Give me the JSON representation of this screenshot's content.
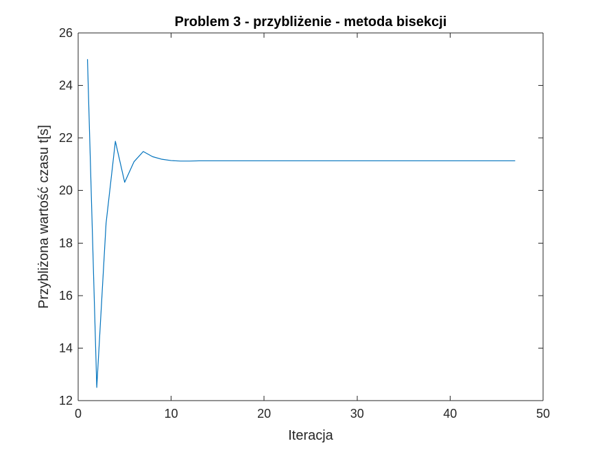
{
  "chart_data": {
    "type": "line",
    "title": "Problem 3 - przybliżenie - metoda bisekcji",
    "xlabel": "Iteracja",
    "ylabel": "Przybliżona wartość czasu t[s]",
    "xlim": [
      0,
      50
    ],
    "ylim": [
      12,
      26
    ],
    "xticks": [
      0,
      10,
      20,
      30,
      40,
      50
    ],
    "yticks": [
      12,
      14,
      16,
      18,
      20,
      22,
      24,
      26
    ],
    "grid": false,
    "box": true,
    "line_color": "#0072BD",
    "series": [
      {
        "x": [
          1,
          2,
          3,
          4,
          5,
          6,
          7,
          8,
          9,
          10,
          11,
          12,
          13,
          14,
          15,
          16,
          17,
          18,
          19,
          20,
          21,
          22,
          23,
          24,
          25,
          26,
          27,
          28,
          29,
          30,
          31,
          32,
          33,
          34,
          35,
          36,
          37,
          38,
          39,
          40,
          41,
          42,
          43,
          44,
          45,
          46,
          47
        ],
        "values": [
          25.0,
          12.5,
          18.75,
          21.875,
          20.3125,
          21.09375,
          21.484375,
          21.2890625,
          21.19,
          21.14,
          21.12,
          21.12,
          21.13,
          21.13,
          21.13,
          21.13,
          21.13,
          21.13,
          21.13,
          21.13,
          21.13,
          21.13,
          21.13,
          21.13,
          21.13,
          21.13,
          21.13,
          21.13,
          21.13,
          21.13,
          21.13,
          21.13,
          21.13,
          21.13,
          21.13,
          21.13,
          21.13,
          21.13,
          21.13,
          21.13,
          21.13,
          21.13,
          21.13,
          21.13,
          21.13,
          21.13,
          21.13
        ]
      }
    ]
  }
}
